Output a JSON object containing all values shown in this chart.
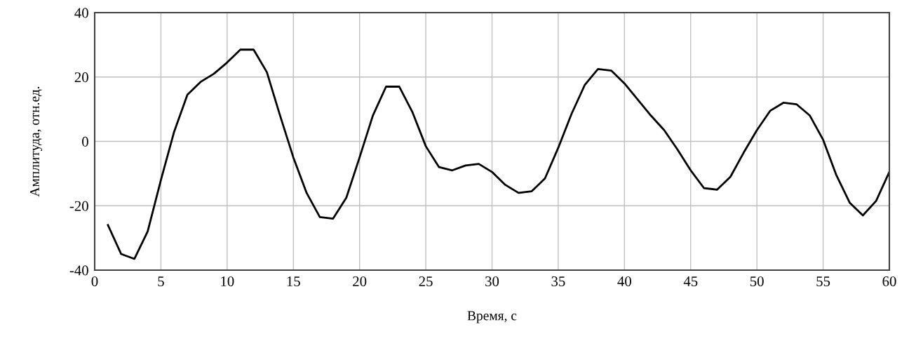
{
  "chart_data": {
    "type": "line",
    "xlabel": "Время, с",
    "ylabel": "Амплитуда, отн.ед.",
    "x": [
      1,
      2,
      3,
      4,
      5,
      6,
      7,
      8,
      9,
      10,
      11,
      12,
      13,
      14,
      15,
      16,
      17,
      18,
      19,
      20,
      21,
      22,
      23,
      24,
      25,
      26,
      27,
      28,
      29,
      30,
      31,
      32,
      33,
      34,
      35,
      36,
      37,
      38,
      39,
      40,
      41,
      42,
      43,
      44,
      45,
      46,
      47,
      48,
      49,
      50,
      51,
      52,
      53,
      54,
      55,
      56,
      57,
      58,
      59,
      60
    ],
    "series": [
      {
        "color": "#000000",
        "values": [
          -26,
          -35,
          -36.5,
          -28,
          -12,
          3,
          14.5,
          18.5,
          21,
          24.5,
          28.5,
          28.5,
          21.5,
          8,
          -5,
          -16,
          -23.5,
          -24,
          -17.5,
          -5,
          8,
          17,
          17,
          9,
          -1.5,
          -8,
          -9,
          -7.5,
          -7,
          -9.5,
          -13.5,
          -16,
          -15.5,
          -11.5,
          -2,
          8.5,
          17.5,
          22.5,
          22,
          18,
          13,
          8,
          3.5,
          -2.5,
          -9,
          -14.5,
          -15,
          -11,
          -3.5,
          3.5,
          9.5,
          12,
          11.5,
          8,
          0.5,
          -10.5,
          -19,
          -23,
          -18.5,
          -9.5
        ]
      }
    ],
    "xlim": [
      0,
      60
    ],
    "ylim": [
      -40,
      40
    ],
    "xticks": [
      0,
      5,
      10,
      15,
      20,
      25,
      30,
      35,
      40,
      45,
      50,
      55,
      60
    ],
    "yticks": [
      -40,
      -20,
      0,
      20,
      40
    ],
    "grid": true,
    "line_style": "solid",
    "marker": "none"
  }
}
